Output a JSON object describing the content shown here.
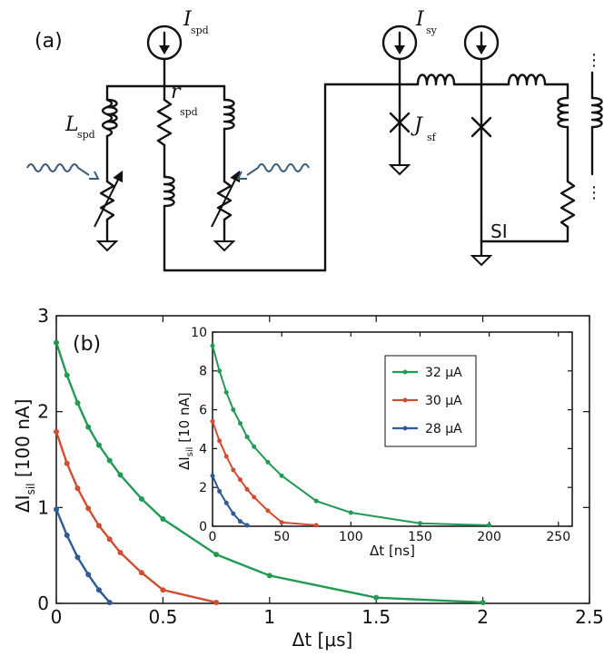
{
  "figure": {
    "panel_a_label": "(a)",
    "panel_b_label": "(b)"
  },
  "circuit": {
    "labels": {
      "I_spd": "I",
      "I_spd_sub": "spd",
      "L_spd": "L",
      "L_spd_sub": "spd",
      "r_spd": "r",
      "r_spd_sub": "spd",
      "I_sy": "I",
      "I_sy_sub": "sy",
      "J_sf": "J",
      "J_sf_sub": "sf",
      "SI": "SI",
      "ellipsis": "⋮"
    }
  },
  "chart_data": [
    {
      "type": "line",
      "title": "",
      "xlabel": "Δt [μs]",
      "ylabel": "ΔI",
      "ylabel_sub": "sil",
      "ylabel_unit": "[100 nA]",
      "xlim": [
        0,
        2.5
      ],
      "ylim": [
        0,
        3
      ],
      "xticks": [
        0,
        0.5,
        1,
        1.5,
        2,
        2.5
      ],
      "xtick_labels": [
        "0",
        "0.5",
        "1",
        "1.5",
        "2",
        "2.5"
      ],
      "yticks": [
        0,
        1,
        2,
        3
      ],
      "ytick_labels": [
        "0",
        "1",
        "2",
        "3"
      ],
      "series": [
        {
          "color": "#219a52",
          "x": [
            0,
            0.05,
            0.1,
            0.15,
            0.2,
            0.25,
            0.3,
            0.4,
            0.5,
            0.75,
            1.0,
            1.5,
            2.0
          ],
          "y": [
            2.72,
            2.38,
            2.09,
            1.84,
            1.65,
            1.49,
            1.34,
            1.09,
            0.88,
            0.51,
            0.29,
            0.06,
            0.01
          ]
        },
        {
          "color": "#d24d2f",
          "x": [
            0,
            0.05,
            0.1,
            0.15,
            0.2,
            0.25,
            0.3,
            0.4,
            0.5,
            0.75
          ],
          "y": [
            1.79,
            1.46,
            1.2,
            0.99,
            0.81,
            0.67,
            0.53,
            0.32,
            0.14,
            0.01
          ]
        },
        {
          "color": "#2c5b96",
          "x": [
            0,
            0.05,
            0.1,
            0.15,
            0.2,
            0.25
          ],
          "y": [
            0.98,
            0.71,
            0.48,
            0.3,
            0.14,
            0.01
          ]
        }
      ]
    },
    {
      "type": "line",
      "title": "",
      "xlabel": "Δt [ns]",
      "ylabel": "ΔI",
      "ylabel_sub": "sil",
      "ylabel_unit": "[10 nA]",
      "xlim": [
        0,
        260
      ],
      "ylim": [
        0,
        10
      ],
      "xticks": [
        0,
        50,
        100,
        150,
        200,
        250
      ],
      "xtick_labels": [
        "0",
        "50",
        "100",
        "150",
        "200",
        "250"
      ],
      "yticks": [
        0,
        2,
        4,
        6,
        8,
        10
      ],
      "ytick_labels": [
        "0",
        "2",
        "4",
        "6",
        "8",
        "10"
      ],
      "legend_position": "top-right",
      "series": [
        {
          "name": "32 μA",
          "color": "#219a52",
          "x": [
            0,
            5,
            10,
            15,
            20,
            25,
            30,
            40,
            50,
            75,
            100,
            150,
            200
          ],
          "y": [
            9.3,
            8.0,
            6.9,
            6.0,
            5.3,
            4.6,
            4.1,
            3.3,
            2.6,
            1.3,
            0.7,
            0.15,
            0.05
          ]
        },
        {
          "name": "30 μA",
          "color": "#d24d2f",
          "x": [
            0,
            5,
            10,
            15,
            20,
            25,
            30,
            40,
            50,
            75
          ],
          "y": [
            5.4,
            4.4,
            3.6,
            2.9,
            2.4,
            1.9,
            1.5,
            0.8,
            0.2,
            0.05
          ]
        },
        {
          "name": "28 μA",
          "color": "#2c5b96",
          "x": [
            0,
            5,
            10,
            15,
            20,
            25
          ],
          "y": [
            2.6,
            1.8,
            1.2,
            0.65,
            0.25,
            0.05
          ]
        }
      ]
    }
  ]
}
